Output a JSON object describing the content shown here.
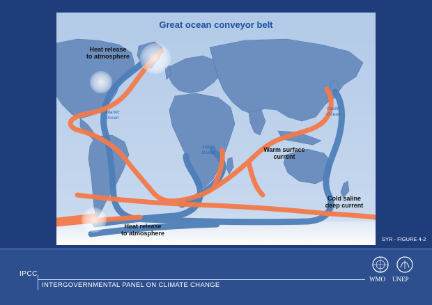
{
  "diagram": {
    "title": "Great ocean conveyor belt",
    "labels": {
      "heat_release_north": "Heat release\nto atmosphere",
      "heat_release_south": "Heat release\nto atmosphere",
      "warm_surface": "Warm surface\ncurrent",
      "cold_deep": "Cold saline\ndeep current"
    },
    "oceans": {
      "atlantic": "Atlantic\nOcean",
      "indian": "Indian\nOcean",
      "pacific": "Pacific\nOcean"
    },
    "colors": {
      "warm_current": "#f47a4a",
      "cold_current": "#4e7fb8",
      "ocean": "#b9d0ea",
      "land": "#6d8fc0"
    }
  },
  "figure_ref": "SYR - FIGURE 4-2",
  "footer": {
    "org_short": "IPCC",
    "org_full": "INTERGOVERNMENTAL PANEL ON CLIMATE CHANGE",
    "logos": [
      "WMO",
      "UNEP"
    ]
  }
}
